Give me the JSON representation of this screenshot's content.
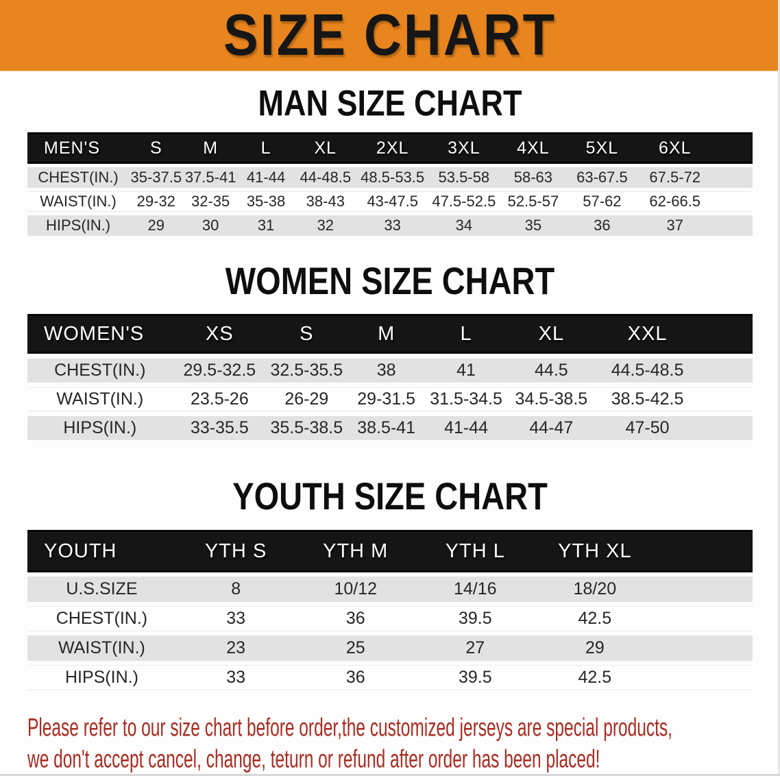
{
  "banner": {
    "title": "SIZE CHART",
    "background": "#E8851E",
    "title_color": "#161616"
  },
  "colors": {
    "header_bar": "#151515",
    "row_band": "#E2E2E2",
    "disclaimer_red": "#A72C21"
  },
  "sections": [
    {
      "heading": "MAN SIZE CHART",
      "table": {
        "label": "MEN'S",
        "sizes": [
          "S",
          "M",
          "L",
          "XL",
          "2XL",
          "3XL",
          "4XL",
          "5XL",
          "6XL"
        ],
        "rows": [
          {
            "label": "CHEST(IN.)",
            "values": [
              "35-37.5",
              "37.5-41",
              "41-44",
              "44-48.5",
              "48.5-53.5",
              "53.5-58",
              "58-63",
              "63-67.5",
              "67.5-72"
            ]
          },
          {
            "label": "WAIST(IN.)",
            "values": [
              "29-32",
              "32-35",
              "35-38",
              "38-43",
              "43-47.5",
              "47.5-52.5",
              "52.5-57",
              "57-62",
              "62-66.5"
            ]
          },
          {
            "label": "HIPS(IN.)",
            "values": [
              "29",
              "30",
              "31",
              "32",
              "33",
              "34",
              "35",
              "36",
              "37"
            ]
          }
        ]
      }
    },
    {
      "heading": "WOMEN SIZE CHART",
      "table": {
        "label": "WOMEN'S",
        "sizes": [
          "XS",
          "S",
          "M",
          "L",
          "XL",
          "XXL"
        ],
        "rows": [
          {
            "label": "CHEST(IN.)",
            "values": [
              "29.5-32.5",
              "32.5-35.5",
              "38",
              "41",
              "44.5",
              "44.5-48.5"
            ]
          },
          {
            "label": "WAIST(IN.)",
            "values": [
              "23.5-26",
              "26-29",
              "29-31.5",
              "31.5-34.5",
              "34.5-38.5",
              "38.5-42.5"
            ]
          },
          {
            "label": "HIPS(IN.)",
            "values": [
              "33-35.5",
              "35.5-38.5",
              "38.5-41",
              "41-44",
              "44-47",
              "47-50"
            ]
          }
        ]
      }
    },
    {
      "heading": "YOUTH SIZE CHART",
      "table": {
        "label": "YOUTH",
        "sizes": [
          "YTH S",
          "YTH M",
          "YTH L",
          "YTH XL"
        ],
        "rows": [
          {
            "label": "U.S.SIZE",
            "values": [
              "8",
              "10/12",
              "14/16",
              "18/20"
            ]
          },
          {
            "label": "CHEST(IN.)",
            "values": [
              "33",
              "36",
              "39.5",
              "42.5"
            ]
          },
          {
            "label": "WAIST(IN.)",
            "values": [
              "23",
              "25",
              "27",
              "29"
            ]
          },
          {
            "label": "HIPS(IN.)",
            "values": [
              "33",
              "36",
              "39.5",
              "42.5"
            ]
          }
        ]
      }
    }
  ],
  "disclaimer": {
    "lines": [
      "Please refer to our size chart before order,the customized jerseys are special products,",
      "we don't accept cancel, change, teturn or refund after order has been placed!"
    ]
  }
}
